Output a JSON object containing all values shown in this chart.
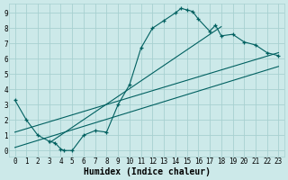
{
  "bg_color": "#cce9e9",
  "grid_color": "#a8d0d0",
  "line_color": "#006060",
  "xlabel": "Humidex (Indice chaleur)",
  "xlabel_fontsize": 7,
  "tick_fontsize": 5.5,
  "xlim": [
    -0.5,
    23.5
  ],
  "ylim": [
    -0.4,
    9.6
  ],
  "xticks": [
    0,
    1,
    2,
    3,
    4,
    5,
    6,
    7,
    8,
    9,
    10,
    11,
    12,
    13,
    14,
    15,
    16,
    17,
    18,
    19,
    20,
    21,
    22,
    23
  ],
  "yticks": [
    0,
    1,
    2,
    3,
    4,
    5,
    6,
    7,
    8,
    9
  ],
  "curve1_x": [
    0,
    1,
    2,
    3,
    3.5,
    4,
    4.3,
    5,
    6,
    7,
    8,
    9,
    10,
    11,
    12,
    13,
    14,
    14.5,
    15,
    15.5,
    16,
    17,
    17.5,
    18,
    19,
    20,
    21,
    22,
    23
  ],
  "curve1_y": [
    3.3,
    2.0,
    1.0,
    0.6,
    0.5,
    0.1,
    0.0,
    0.0,
    1.0,
    1.3,
    1.2,
    3.0,
    4.3,
    6.7,
    8.0,
    8.5,
    9.0,
    9.3,
    9.2,
    9.1,
    8.6,
    7.8,
    8.2,
    7.5,
    7.6,
    7.1,
    6.9,
    6.4,
    6.2
  ],
  "line1_x": [
    0,
    23
  ],
  "line1_y": [
    1.2,
    6.4
  ],
  "line2_x": [
    0,
    23
  ],
  "line2_y": [
    0.2,
    5.5
  ],
  "line3_x": [
    3,
    18
  ],
  "line3_y": [
    0.5,
    8.1
  ]
}
